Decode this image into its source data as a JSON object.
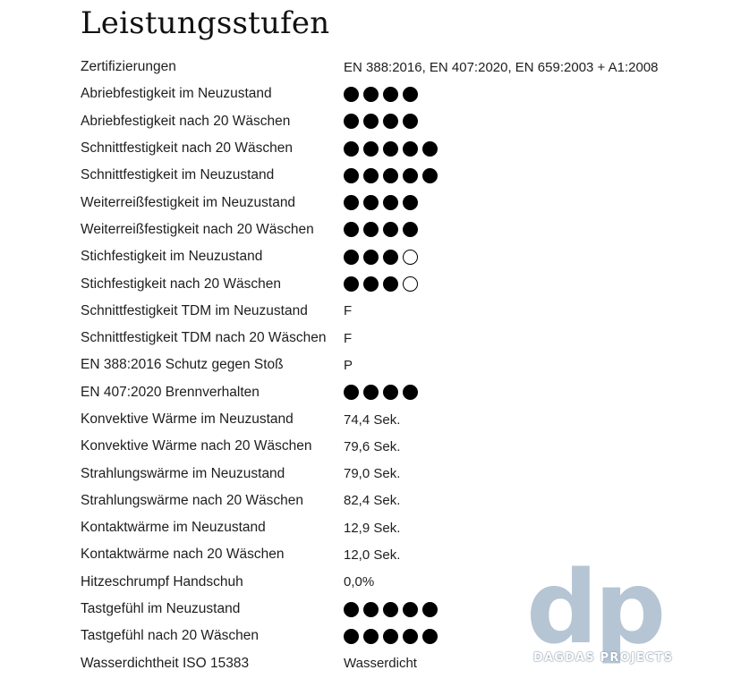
{
  "title": "Leistungsstufen",
  "rows": [
    {
      "label": "Zertifizierungen",
      "value": "EN 388:2016, EN 407:2020, EN 659:2003 + A1:2008"
    },
    {
      "label": "Abriebfestigkeit im Neuzustand",
      "rating": {
        "filled": 4,
        "empty": 0
      }
    },
    {
      "label": "Abriebfestigkeit nach 20 Wäschen",
      "rating": {
        "filled": 4,
        "empty": 0
      }
    },
    {
      "label": "Schnittfestigkeit nach 20 Wäschen",
      "rating": {
        "filled": 5,
        "empty": 0
      }
    },
    {
      "label": "Schnittfestigkeit im Neuzustand",
      "rating": {
        "filled": 5,
        "empty": 0
      }
    },
    {
      "label": "Weiterreißfestigkeit im Neuzustand",
      "rating": {
        "filled": 4,
        "empty": 0
      }
    },
    {
      "label": "Weiterreißfestigkeit nach 20 Wäschen",
      "rating": {
        "filled": 4,
        "empty": 0
      }
    },
    {
      "label": "Stichfestigkeit im Neuzustand",
      "rating": {
        "filled": 3,
        "empty": 1
      }
    },
    {
      "label": "Stichfestigkeit nach 20 Wäschen",
      "rating": {
        "filled": 3,
        "empty": 1
      }
    },
    {
      "label": "Schnittfestigkeit TDM im Neuzustand",
      "value": "F"
    },
    {
      "label": "Schnittfestigkeit TDM nach 20 Wäschen",
      "value": "F"
    },
    {
      "label": "EN 388:2016 Schutz gegen Stoß",
      "value": "P"
    },
    {
      "label": "EN 407:2020 Brennverhalten",
      "rating": {
        "filled": 4,
        "empty": 0
      }
    },
    {
      "label": "Konvektive Wärme im Neuzustand",
      "value": "74,4 Sek."
    },
    {
      "label": "Konvektive Wärme nach 20 Wäschen",
      "value": "79,6 Sek."
    },
    {
      "label": "Strahlungswärme im Neuzustand",
      "value": "79,0 Sek."
    },
    {
      "label": "Strahlungswärme nach 20 Wäschen",
      "value": "82,4 Sek."
    },
    {
      "label": "Kontaktwärme im Neuzustand",
      "value": "12,9 Sek."
    },
    {
      "label": "Kontaktwärme nach 20 Wäschen",
      "value": "12,0 Sek."
    },
    {
      "label": "Hitzeschrumpf Handschuh",
      "value": "0,0%"
    },
    {
      "label": "Tastgefühl im Neuzustand",
      "rating": {
        "filled": 5,
        "empty": 0
      }
    },
    {
      "label": "Tastgefühl nach 20 Wäschen",
      "rating": {
        "filled": 5,
        "empty": 0
      }
    },
    {
      "label": "Wasserdichtheit ISO 15383",
      "value": "Wasserdicht"
    }
  ],
  "watermark": {
    "letters": "dp",
    "brand": "DAGDAS PROJECTS"
  }
}
